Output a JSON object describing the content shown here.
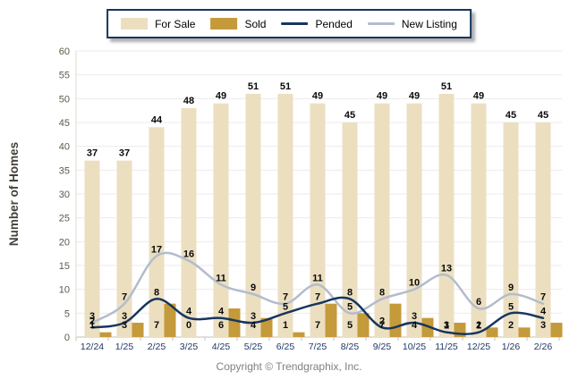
{
  "legend": {
    "position": "top-center",
    "items": [
      {
        "label": "For Sale",
        "marker": "swatch"
      },
      {
        "label": "Sold",
        "marker": "swatch"
      },
      {
        "label": "Pended",
        "marker": "line"
      },
      {
        "label": "New Listing",
        "marker": "line"
      }
    ]
  },
  "footer": {
    "text": "Copyright © Trendgraphix, Inc."
  },
  "colors": {
    "for_sale": "#ecdfc0",
    "sold": "#c49a3a",
    "pended": "#17365d",
    "new_listing": "#b3bcce",
    "grid": "#ebebeb",
    "axis": "#c6c2b8",
    "y_tick_label": "#5e594a",
    "x_tick_label": "#1f3864",
    "value_label": "#0a0a0a",
    "y_axis_title": "#45413a",
    "footer_text": "#808080",
    "legend_border": "#17365d"
  },
  "chart_data": {
    "type": "bar",
    "subtype": "grouped-bars-with-lines",
    "title": "",
    "xlabel": "",
    "ylabel": "Number of Homes",
    "ylim": [
      0,
      60
    ],
    "ytick_step": 5,
    "grid": true,
    "legend_position": "top",
    "categories": [
      "12/24",
      "1/25",
      "2/25",
      "3/25",
      "4/25",
      "5/25",
      "6/25",
      "7/25",
      "8/25",
      "9/25",
      "10/25",
      "11/25",
      "12/25",
      "1/26",
      "2/26"
    ],
    "series": [
      {
        "name": "For Sale",
        "type": "bar",
        "color": "#ecdfc0",
        "values": [
          37,
          37,
          44,
          48,
          49,
          51,
          51,
          49,
          45,
          49,
          49,
          51,
          49,
          45,
          45
        ]
      },
      {
        "name": "Sold",
        "type": "bar",
        "color": "#c49a3a",
        "values": [
          1,
          3,
          7,
          0,
          6,
          4,
          1,
          7,
          5,
          7,
          4,
          3,
          2,
          2,
          3
        ]
      },
      {
        "name": "Pended",
        "type": "line",
        "color": "#17365d",
        "values": [
          2,
          3,
          8,
          4,
          4,
          3,
          5,
          7,
          8,
          2,
          3,
          1,
          1,
          5,
          4
        ]
      },
      {
        "name": "New Listing",
        "type": "line",
        "color": "#b3bcce",
        "values": [
          3,
          7,
          17,
          16,
          11,
          9,
          7,
          11,
          5,
          8,
          10,
          13,
          6,
          9,
          7
        ]
      }
    ]
  }
}
